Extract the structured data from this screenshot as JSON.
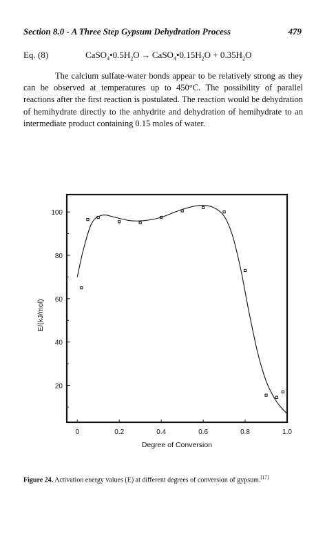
{
  "header": {
    "section_title": "Section 8.0 - A Three Step Gypsum Dehydration Process",
    "page_number": "479"
  },
  "equation": {
    "label": "Eq. (8)",
    "lhs_formula": "CaSO",
    "lhs_sub_1": "4",
    "lhs_mid": "•0.5H",
    "lhs_sub_2": "2",
    "lhs_end": "O",
    "arrow": "→",
    "rhs_formula": "CaSO",
    "rhs_sub_1": "4",
    "rhs_mid": "•0.15H",
    "rhs_sub_2": "2",
    "rhs_end": "O + 0.35H",
    "rhs_sub_3": "2",
    "rhs_tail": "O"
  },
  "paragraph": "The calcium sulfate-water bonds appear to be relatively strong as they can be observed at temperatures up to 450°C. The possibility of parallel reactions after the first reaction is postulated. The reaction would be dehydration of hemihydrate directly to the anhydrite and dehydration of hemihydrate to an intermediate product containing 0.15 moles of water.",
  "caption": {
    "label": "Figure 24.",
    "text": " Activation energy values (E) at different degrees of conversion of gypsum.",
    "ref": "[17]"
  },
  "chart_data": {
    "type": "scatter",
    "xlabel": "Degree of Conversion",
    "ylabel": "E/(kJ/mol)",
    "xlim": [
      -0.05,
      1.0
    ],
    "ylim": [
      3,
      108
    ],
    "x_ticks": [
      "0",
      "0.2",
      "0.4",
      "0.6",
      "0.8",
      "1.0"
    ],
    "x_tick_values": [
      0,
      0.2,
      0.4,
      0.6,
      0.8,
      1.0
    ],
    "y_ticks": [
      "20",
      "40",
      "60",
      "80",
      "100"
    ],
    "y_tick_values": [
      20,
      40,
      60,
      80,
      100
    ],
    "points": [
      {
        "x": 0.02,
        "y": 65
      },
      {
        "x": 0.05,
        "y": 96.5
      },
      {
        "x": 0.1,
        "y": 97.5
      },
      {
        "x": 0.2,
        "y": 95.5
      },
      {
        "x": 0.3,
        "y": 95
      },
      {
        "x": 0.4,
        "y": 97.5
      },
      {
        "x": 0.5,
        "y": 100.5
      },
      {
        "x": 0.6,
        "y": 102
      },
      {
        "x": 0.7,
        "y": 100
      },
      {
        "x": 0.8,
        "y": 73
      },
      {
        "x": 0.9,
        "y": 15.5
      },
      {
        "x": 0.95,
        "y": 14.5
      },
      {
        "x": 0.98,
        "y": 17
      }
    ],
    "fit_curve": [
      {
        "x": 0.0,
        "y": 70
      },
      {
        "x": 0.03,
        "y": 83
      },
      {
        "x": 0.07,
        "y": 95
      },
      {
        "x": 0.12,
        "y": 98.5
      },
      {
        "x": 0.18,
        "y": 97.5
      },
      {
        "x": 0.25,
        "y": 96
      },
      {
        "x": 0.32,
        "y": 96
      },
      {
        "x": 0.4,
        "y": 97.5
      },
      {
        "x": 0.48,
        "y": 100.5
      },
      {
        "x": 0.55,
        "y": 102.5
      },
      {
        "x": 0.6,
        "y": 103
      },
      {
        "x": 0.65,
        "y": 102
      },
      {
        "x": 0.7,
        "y": 98
      },
      {
        "x": 0.74,
        "y": 89
      },
      {
        "x": 0.78,
        "y": 73
      },
      {
        "x": 0.82,
        "y": 53
      },
      {
        "x": 0.86,
        "y": 35
      },
      {
        "x": 0.9,
        "y": 22
      },
      {
        "x": 0.94,
        "y": 14
      },
      {
        "x": 0.97,
        "y": 10
      },
      {
        "x": 1.0,
        "y": 7
      }
    ]
  }
}
